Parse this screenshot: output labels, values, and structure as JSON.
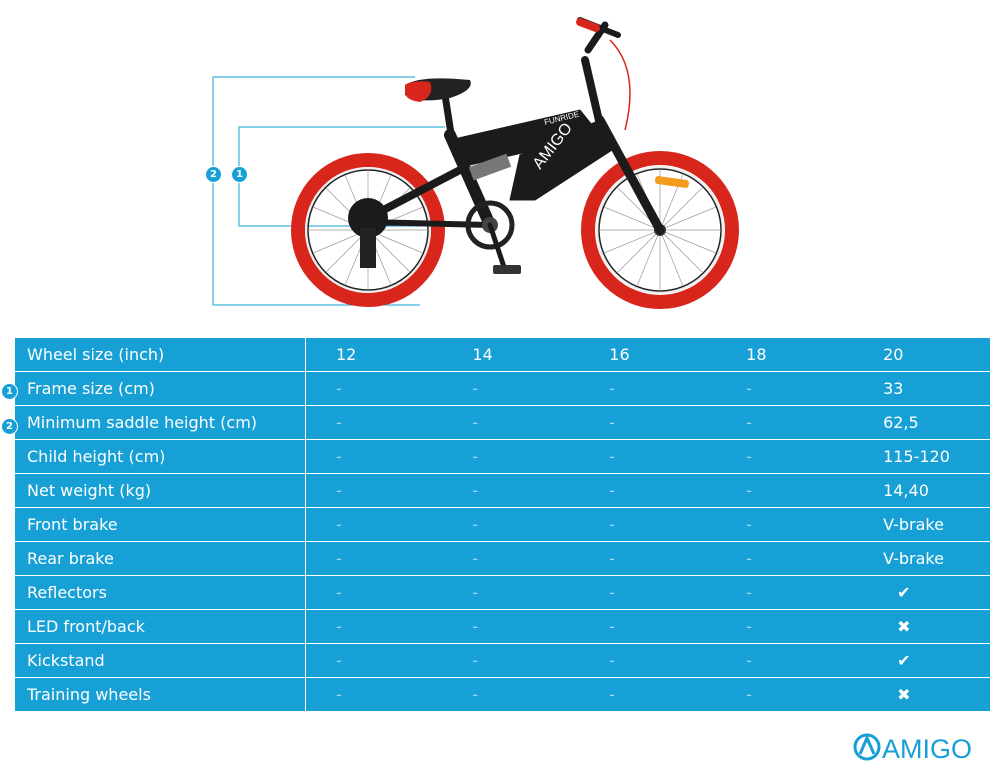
{
  "bike": {
    "frame_text": "AMIGO",
    "model_text": "FUNRIDE",
    "marker_frame": "1",
    "marker_saddle": "2"
  },
  "table": {
    "header": {
      "label": "Wheel size (inch)",
      "values": [
        "12",
        "14",
        "16",
        "18",
        "20"
      ]
    },
    "rows": [
      {
        "marker": "1",
        "label": "Frame size (cm)",
        "values": [
          "-",
          "-",
          "-",
          "-",
          "33"
        ]
      },
      {
        "marker": "2",
        "label": "Minimum saddle height (cm)",
        "values": [
          "-",
          "-",
          "-",
          "-",
          "62,5"
        ]
      },
      {
        "marker": "",
        "label": "Child height (cm)",
        "values": [
          "-",
          "-",
          "-",
          "-",
          "115-120"
        ]
      },
      {
        "marker": "",
        "label": "Net weight (kg)",
        "values": [
          "-",
          "-",
          "-",
          "-",
          "14,40"
        ]
      },
      {
        "marker": "",
        "label": "Front brake",
        "values": [
          "-",
          "-",
          "-",
          "-",
          "V-brake"
        ]
      },
      {
        "marker": "",
        "label": "Rear brake",
        "values": [
          "-",
          "-",
          "-",
          "-",
          "V-brake"
        ]
      },
      {
        "marker": "",
        "label": "Reflectors",
        "values": [
          "-",
          "-",
          "-",
          "-",
          "✔"
        ]
      },
      {
        "marker": "",
        "label": "LED front/back",
        "values": [
          "-",
          "-",
          "-",
          "-",
          "✖"
        ]
      },
      {
        "marker": "",
        "label": "Kickstand",
        "values": [
          "-",
          "-",
          "-",
          "-",
          "✔"
        ]
      },
      {
        "marker": "",
        "label": "Training wheels",
        "values": [
          "-",
          "-",
          "-",
          "-",
          "✖"
        ]
      }
    ]
  },
  "logo": {
    "text": "AMIGO"
  },
  "colors": {
    "accent": "#17a0d6",
    "tire": "#d9261c",
    "frame": "#1b1b1b"
  }
}
